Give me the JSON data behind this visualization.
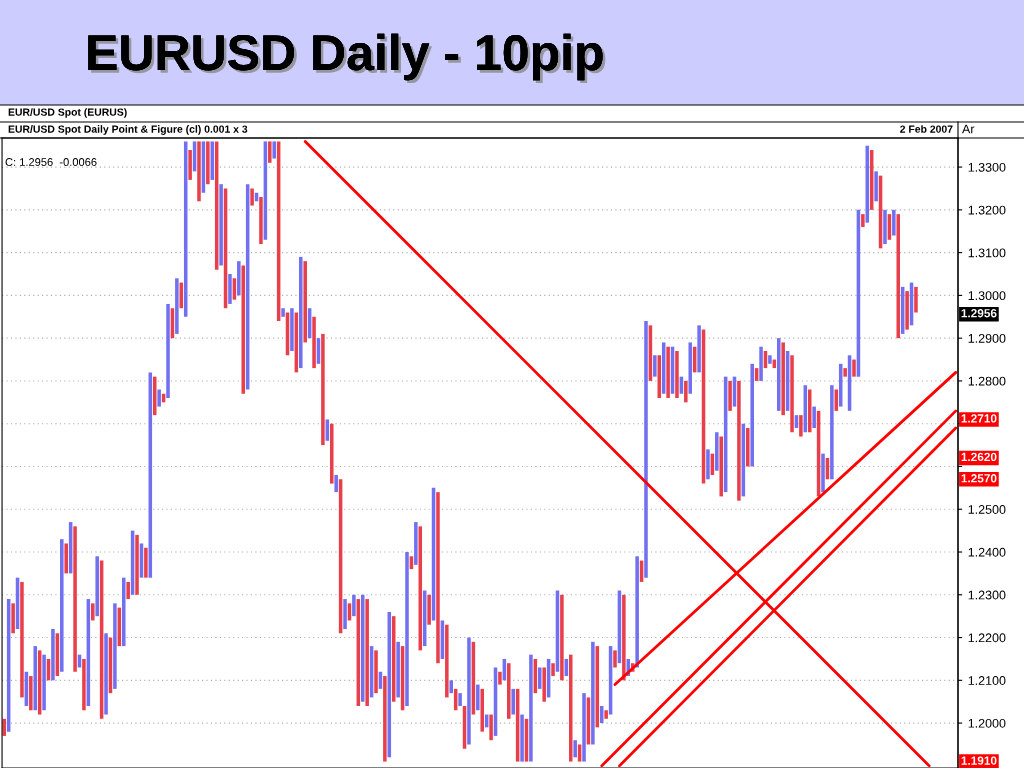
{
  "chart_data": {
    "type": "bar",
    "title": "EURUSD Daily - 10pip",
    "subtitle": "EUR/USD Spot Daily Point & Figure (cl) 0.001 x 3",
    "annotations": [
      "EUR/USD Spot (EURUS)",
      "2 Feb 2007",
      "Ar",
      "C: 1.2956  -0.0066",
      {
        "text": "1.2956",
        "y": 1.2956
      },
      {
        "text": "1.2710",
        "y": 1.271
      },
      {
        "text": "1.2620",
        "y": 1.262
      },
      {
        "text": "1.2570",
        "y": 1.257
      },
      {
        "text": "1.1910",
        "y": 1.191
      }
    ],
    "categories": [
      null,
      null,
      null,
      null,
      null,
      null,
      null,
      null,
      null,
      null,
      null,
      null,
      null,
      null,
      null,
      null,
      null,
      null,
      null,
      null,
      null,
      null,
      null,
      null,
      null,
      null,
      null,
      null,
      null,
      null,
      null,
      null,
      null,
      null,
      null,
      null,
      null,
      null,
      null,
      null,
      null,
      null,
      null,
      null,
      null,
      null,
      null,
      null,
      null,
      null,
      null,
      null,
      null,
      null,
      null,
      null,
      null,
      null,
      null,
      null,
      null,
      null,
      null,
      null,
      null,
      null,
      null,
      null,
      null,
      null,
      null,
      null,
      null,
      null,
      null,
      null,
      null,
      null,
      null,
      null,
      null,
      null,
      null,
      null,
      null,
      null,
      null,
      null,
      null,
      null,
      null,
      null,
      null,
      null,
      null,
      null,
      null,
      null,
      null,
      null,
      null,
      null,
      null,
      null,
      null,
      null,
      null,
      null,
      null,
      null,
      null,
      null,
      null,
      null,
      null,
      null,
      null,
      null,
      null,
      null,
      null,
      null,
      null,
      null,
      null,
      null,
      null,
      null,
      null,
      null,
      null,
      null,
      null,
      null,
      null,
      null,
      null,
      null,
      null,
      null,
      null,
      null,
      null,
      null,
      null,
      null,
      null,
      null,
      null,
      null,
      null,
      null,
      null,
      null,
      null,
      null,
      null,
      null,
      null,
      null,
      null,
      null,
      null,
      null,
      null,
      null,
      null,
      null,
      null,
      null,
      null,
      null,
      null,
      null,
      null,
      null,
      null,
      null,
      null,
      null,
      null,
      null,
      null,
      null,
      null,
      null,
      null,
      null,
      null,
      null,
      null,
      null,
      null,
      null,
      null,
      null,
      null,
      null,
      null,
      null,
      null,
      null,
      null,
      null,
      null,
      null,
      null,
      null,
      null,
      null,
      null,
      null,
      null,
      null,
      null,
      null
    ],
    "series": [
      {
        "base": [
          1.197,
          1.198,
          1.221,
          1.222,
          1.206,
          1.204,
          1.203,
          1.203,
          1.202,
          1.203,
          1.21,
          1.21,
          1.211,
          1.212,
          1.235,
          1.235,
          1.212,
          1.213,
          1.203,
          1.204,
          1.224,
          1.225,
          1.201,
          1.202,
          1.207,
          1.208,
          1.218,
          1.218,
          1.229,
          1.23,
          1.23,
          1.234,
          1.234,
          1.234,
          1.272,
          1.274,
          1.275,
          1.276,
          1.29,
          1.291,
          1.297,
          1.295,
          1.327,
          1.329,
          1.322,
          1.324,
          1.326,
          1.327,
          1.306,
          1.307,
          1.297,
          1.298,
          1.299,
          1.3,
          1.277,
          1.278,
          1.321,
          1.322,
          1.312,
          1.313,
          1.331,
          1.332,
          1.294,
          1.295,
          1.286,
          1.287,
          1.282,
          1.283,
          1.289,
          1.29,
          1.283,
          1.284,
          1.265,
          1.266,
          1.256,
          1.254,
          1.221,
          1.222,
          1.224,
          1.225,
          1.204,
          1.205,
          1.204,
          1.206,
          1.207,
          1.208,
          1.191,
          1.192,
          1.205,
          1.206,
          1.203,
          1.204,
          1.236,
          1.237,
          1.217,
          1.218,
          1.223,
          1.224,
          1.214,
          1.215,
          1.206,
          1.207,
          1.203,
          1.204,
          1.194,
          1.195,
          1.202,
          1.203,
          1.198,
          1.199,
          1.196,
          1.197,
          1.209,
          1.21,
          1.201,
          1.202,
          1.191,
          1.191,
          1.191,
          1.191,
          1.207,
          1.208,
          1.205,
          1.206,
          1.211,
          1.212,
          1.21,
          1.211,
          1.191,
          1.192,
          1.191,
          1.191,
          1.195,
          1.195,
          1.199,
          1.2,
          1.201,
          1.202,
          1.213,
          1.214,
          1.21,
          1.211,
          1.212,
          1.213,
          1.233,
          1.234,
          1.28,
          1.281,
          1.276,
          1.277,
          1.276,
          1.277,
          1.276,
          1.277,
          1.275,
          1.277,
          1.282,
          1.282,
          1.256,
          1.257,
          1.258,
          1.259,
          1.253,
          1.254,
          1.273,
          1.274,
          1.252,
          1.253,
          1.26,
          1.26,
          1.28,
          1.28,
          1.283,
          1.284,
          1.283,
          1.273,
          1.272,
          1.273,
          1.268,
          1.269,
          1.267,
          1.268,
          1.268,
          1.269,
          1.253,
          1.254,
          1.257,
          1.257,
          1.273,
          1.274,
          1.281,
          1.273,
          1.281,
          1.281,
          1.316,
          1.317,
          1.32,
          1.322,
          1.311,
          1.312,
          1.313,
          1.314,
          1.29,
          1.291,
          1.292,
          1.293,
          1.296,
          null,
          null,
          null,
          null,
          null,
          null,
          null,
          null,
          null
        ],
        "values": [
          0.004,
          0.031,
          0.007,
          0.012,
          0.027,
          0.008,
          0.008,
          0.015,
          0.015,
          0.013,
          0.005,
          0.012,
          0.01,
          0.031,
          0.007,
          0.012,
          0.034,
          0.003,
          0.012,
          0.025,
          0.004,
          0.014,
          0.037,
          0.019,
          0.013,
          0.02,
          0.009,
          0.016,
          0.004,
          0.015,
          0.014,
          0.008,
          0.007,
          0.048,
          0.009,
          0.004,
          0.002,
          0.022,
          0.007,
          0.013,
          0.006,
          0.041,
          0.007,
          0.007,
          0.014,
          0.012,
          0.01,
          0.009,
          0.03,
          0.019,
          0.028,
          0.007,
          0.005,
          0.008,
          0.03,
          0.048,
          0.004,
          0.002,
          0.011,
          0.023,
          0.005,
          0.004,
          0.042,
          0.002,
          0.01,
          0.01,
          0.014,
          0.026,
          0.019,
          0.007,
          0.012,
          0.006,
          0.026,
          0.005,
          0.014,
          0.004,
          0.036,
          0.007,
          0.004,
          0.005,
          0.025,
          0.025,
          0.025,
          0.012,
          0.01,
          0.004,
          0.02,
          0.034,
          0.02,
          0.013,
          0.015,
          0.036,
          0.003,
          0.01,
          0.029,
          0.013,
          0.007,
          0.031,
          0.04,
          0.009,
          0.017,
          0.003,
          0.005,
          0.003,
          0.01,
          0.025,
          0.017,
          0.006,
          0.01,
          0.003,
          0.006,
          0.016,
          0.003,
          0.005,
          0.013,
          0.006,
          0.017,
          0.011,
          0.01,
          0.025,
          0.008,
          0.005,
          0.008,
          0.009,
          0.003,
          0.019,
          0.02,
          0.004,
          0.025,
          0.004,
          0.004,
          0.016,
          0.011,
          0.024,
          0.019,
          0.004,
          0.002,
          0.016,
          0.004,
          0.017,
          0.02,
          0.004,
          0.002,
          0.026,
          0.005,
          0.06,
          0.013,
          0.005,
          0.01,
          0.012,
          0.012,
          0.011,
          0.011,
          0.004,
          0.005,
          0.012,
          0.006,
          0.011,
          0.036,
          0.007,
          0.005,
          0.009,
          0.014,
          0.027,
          0.007,
          0.007,
          0.028,
          0.017,
          0.009,
          0.024,
          0.003,
          0.008,
          0.004,
          0.002,
          0.002,
          0.017,
          0.017,
          0.014,
          0.018,
          0.003,
          0.005,
          0.011,
          0.01,
          0.005,
          0.02,
          0.009,
          0.005,
          0.022,
          0.005,
          0.01,
          0.002,
          0.013,
          0.004,
          0.039,
          0.003,
          0.018,
          0.014,
          0.007,
          0.017,
          0.008,
          0.006,
          0.006,
          0.029,
          0.011,
          0.009,
          0.01,
          0.006,
          null,
          null,
          null,
          null,
          null,
          null,
          null,
          null,
          null
        ],
        "colors": [
          "#e8404a",
          "#7070f0",
          "#e8404a",
          "#7070f0",
          "#e8404a",
          "#7070f0",
          "#e8404a",
          "#7070f0",
          "#e8404a",
          "#7070f0",
          "#e8404a",
          "#7070f0",
          "#e8404a",
          "#7070f0",
          "#e8404a",
          "#7070f0",
          "#e8404a",
          "#7070f0",
          "#e8404a",
          "#7070f0",
          "#e8404a",
          "#7070f0",
          "#e8404a",
          "#7070f0",
          "#e8404a",
          "#7070f0",
          "#e8404a",
          "#7070f0",
          "#e8404a",
          "#7070f0",
          "#e8404a",
          "#7070f0",
          "#e8404a",
          "#7070f0",
          "#e8404a",
          "#7070f0",
          "#e8404a",
          "#7070f0",
          "#e8404a",
          "#7070f0",
          "#e8404a",
          "#7070f0",
          "#e8404a",
          "#7070f0",
          "#e8404a",
          "#7070f0",
          "#e8404a",
          "#7070f0",
          "#e8404a",
          "#7070f0",
          "#e8404a",
          "#7070f0",
          "#e8404a",
          "#7070f0",
          "#e8404a",
          "#7070f0",
          "#e8404a",
          "#7070f0",
          "#e8404a",
          "#7070f0",
          "#e8404a",
          "#7070f0",
          "#e8404a",
          "#7070f0",
          "#e8404a",
          "#7070f0",
          "#e8404a",
          "#7070f0",
          "#e8404a",
          "#7070f0",
          "#e8404a",
          "#7070f0",
          "#e8404a",
          "#7070f0",
          "#e8404a",
          "#7070f0",
          "#e8404a",
          "#7070f0",
          "#e8404a",
          "#7070f0",
          "#e8404a",
          "#7070f0",
          "#e8404a",
          "#7070f0",
          "#e8404a",
          "#7070f0",
          "#e8404a",
          "#7070f0",
          "#e8404a",
          "#7070f0",
          "#e8404a",
          "#7070f0",
          "#e8404a",
          "#7070f0",
          "#e8404a",
          "#7070f0",
          "#e8404a",
          "#7070f0",
          "#e8404a",
          "#7070f0",
          "#e8404a",
          "#7070f0",
          "#e8404a",
          "#7070f0",
          "#e8404a",
          "#7070f0",
          "#e8404a",
          "#7070f0",
          "#e8404a",
          "#7070f0",
          "#e8404a",
          "#7070f0",
          "#e8404a",
          "#7070f0",
          "#e8404a",
          "#7070f0",
          "#e8404a",
          "#7070f0",
          "#e8404a",
          "#7070f0",
          "#e8404a",
          "#7070f0",
          "#e8404a",
          "#7070f0",
          "#e8404a",
          "#7070f0",
          "#e8404a",
          "#7070f0",
          "#e8404a",
          "#7070f0",
          "#e8404a",
          "#7070f0",
          "#e8404a",
          "#7070f0",
          "#e8404a",
          "#7070f0",
          "#e8404a",
          "#7070f0",
          "#e8404a",
          "#7070f0",
          "#e8404a",
          "#7070f0",
          "#e8404a",
          "#7070f0",
          "#e8404a",
          "#7070f0",
          "#e8404a",
          "#7070f0",
          "#e8404a",
          "#7070f0",
          "#e8404a",
          "#7070f0",
          "#e8404a",
          "#7070f0",
          "#e8404a",
          "#7070f0",
          "#e8404a",
          "#7070f0",
          "#e8404a",
          "#7070f0",
          "#e8404a",
          "#7070f0",
          "#e8404a",
          "#7070f0",
          "#e8404a",
          "#7070f0",
          "#e8404a",
          "#7070f0",
          "#e8404a",
          "#7070f0",
          "#e8404a",
          "#7070f0",
          "#e8404a",
          "#7070f0",
          "#e8404a",
          "#7070f0",
          "#e8404a",
          "#7070f0",
          "#e8404a",
          "#7070f0",
          "#e8404a",
          "#7070f0",
          "#e8404a",
          "#7070f0",
          "#e8404a",
          "#7070f0",
          "#e8404a",
          "#7070f0",
          "#e8404a",
          "#7070f0",
          "#e8404a",
          "#7070f0",
          "#e8404a",
          "#7070f0",
          "#e8404a",
          "#7070f0",
          "#e8404a",
          "#7070f0",
          "#e8404a",
          "#7070f0",
          "#e8404a",
          "#7070f0",
          "#e8404a",
          "#7070f0",
          "#e8404a",
          "#7070f0",
          "#e8404a",
          null,
          null,
          null,
          null,
          null,
          null,
          null,
          null,
          null
        ]
      },
      {
        "type": "line",
        "color": "#ff0000",
        "values": [
          null,
          null,
          null,
          null,
          null,
          null,
          null,
          null,
          null,
          null,
          null,
          null,
          null,
          null,
          null,
          null,
          null,
          null,
          null,
          null,
          null,
          null,
          null,
          null,
          null,
          null,
          null,
          null,
          null,
          null,
          null,
          null,
          null,
          null,
          null,
          null,
          null,
          null,
          null,
          null,
          null,
          null,
          null,
          null,
          null,
          null,
          null,
          null,
          null,
          null,
          null,
          null,
          null,
          null,
          null,
          null,
          null,
          null,
          null,
          null,
          null,
          null,
          null,
          null,
          null,
          null,
          null,
          null,
          1.336,
          null,
          null,
          null,
          null,
          null,
          null,
          null,
          null,
          null,
          null,
          null,
          null,
          null,
          null,
          null,
          null,
          null,
          null,
          null,
          null,
          null,
          null,
          null,
          null,
          null,
          null,
          null,
          null,
          null,
          null,
          null,
          null,
          null,
          null,
          null,
          null,
          null,
          null,
          null,
          null,
          null,
          null,
          null,
          null,
          null,
          null,
          null,
          null,
          null,
          null,
          null,
          null,
          null,
          null,
          null,
          null,
          null,
          null,
          null,
          null,
          null,
          null,
          null,
          null,
          null,
          null,
          null,
          null,
          null,
          null,
          null,
          null,
          null,
          null,
          null,
          null,
          null,
          null,
          null,
          null,
          null,
          null,
          null,
          null,
          null,
          null,
          null,
          null,
          null,
          null,
          null,
          null,
          null,
          null,
          null,
          null,
          null,
          null,
          null,
          null,
          null,
          null,
          null,
          null,
          null,
          null,
          null,
          null,
          null,
          null,
          null,
          null,
          null,
          null,
          null,
          null,
          null,
          null,
          null,
          null,
          null,
          null,
          null,
          null,
          null,
          null,
          null,
          null,
          null,
          null,
          null,
          null,
          null,
          null,
          null,
          null,
          null,
          null,
          null,
          null,
          1.19,
          null,
          null,
          null,
          null,
          null,
          null
        ]
      },
      {
        "type": "line",
        "color": "#ff0000",
        "values": [
          null,
          null,
          null,
          null,
          null,
          null,
          null,
          null,
          null,
          null,
          null,
          null,
          null,
          null,
          null,
          null,
          null,
          null,
          null,
          null,
          null,
          null,
          null,
          null,
          null,
          null,
          null,
          null,
          null,
          null,
          null,
          null,
          null,
          null,
          null,
          null,
          null,
          null,
          null,
          null,
          null,
          null,
          null,
          null,
          null,
          null,
          null,
          null,
          null,
          null,
          null,
          null,
          null,
          null,
          null,
          null,
          null,
          null,
          null,
          null,
          null,
          null,
          null,
          null,
          null,
          null,
          null,
          null,
          null,
          null,
          null,
          null,
          null,
          null,
          null,
          null,
          null,
          null,
          null,
          null,
          null,
          null,
          null,
          null,
          null,
          null,
          null,
          null,
          null,
          null,
          null,
          null,
          null,
          null,
          null,
          null,
          null,
          null,
          null,
          null,
          null,
          null,
          null,
          null,
          null,
          null,
          null,
          null,
          null,
          null,
          null,
          null,
          null,
          null,
          null,
          null,
          null,
          null,
          null,
          null,
          null,
          null,
          null,
          null,
          null,
          null,
          null,
          null,
          null,
          null,
          null,
          null,
          null,
          null,
          null,
          null,
          null,
          null,
          1.209,
          null,
          null,
          null,
          null,
          null,
          null,
          null,
          null,
          null,
          null,
          null,
          null,
          null,
          null,
          null,
          null,
          null,
          null,
          null,
          null,
          null,
          null,
          null,
          null,
          null,
          null,
          null,
          null,
          null,
          null,
          null,
          null,
          null,
          null,
          null,
          null,
          null,
          null,
          null,
          null,
          null,
          null,
          null,
          null,
          null,
          null,
          null,
          null,
          null,
          null,
          null,
          null,
          null,
          null,
          null,
          null,
          null,
          null,
          null,
          null,
          null,
          null,
          null,
          null,
          null,
          null,
          null,
          null,
          null,
          null,
          null,
          null,
          null,
          null,
          null,
          null,
          1.282
        ]
      },
      {
        "type": "line",
        "color": "#ff0000",
        "values": [
          null,
          null,
          null,
          null,
          null,
          null,
          null,
          null,
          null,
          null,
          null,
          null,
          null,
          null,
          null,
          null,
          null,
          null,
          null,
          null,
          null,
          null,
          null,
          null,
          null,
          null,
          null,
          null,
          null,
          null,
          null,
          null,
          null,
          null,
          null,
          null,
          null,
          null,
          null,
          null,
          null,
          null,
          null,
          null,
          null,
          null,
          null,
          null,
          null,
          null,
          null,
          null,
          null,
          null,
          null,
          null,
          null,
          null,
          null,
          null,
          null,
          null,
          null,
          null,
          null,
          null,
          null,
          null,
          null,
          null,
          null,
          null,
          null,
          null,
          null,
          null,
          null,
          null,
          null,
          null,
          null,
          null,
          null,
          null,
          null,
          null,
          null,
          null,
          null,
          null,
          null,
          null,
          null,
          null,
          null,
          null,
          null,
          null,
          null,
          null,
          null,
          null,
          null,
          null,
          null,
          null,
          null,
          null,
          null,
          null,
          null,
          null,
          null,
          null,
          null,
          null,
          null,
          null,
          null,
          null,
          null,
          null,
          null,
          null,
          null,
          null,
          null,
          null,
          null,
          null,
          null,
          null,
          null,
          null,
          null,
          1.19,
          null,
          null,
          null,
          null,
          null,
          null,
          null,
          null,
          null,
          null,
          null,
          null,
          null,
          null,
          null,
          null,
          null,
          null,
          null,
          null,
          null,
          null,
          null,
          null,
          null,
          null,
          null,
          null,
          null,
          null,
          null,
          null,
          null,
          null,
          null,
          null,
          null,
          null,
          null,
          null,
          null,
          null,
          null,
          null,
          null,
          null,
          null,
          null,
          null,
          null,
          null,
          null,
          null,
          null,
          null,
          null,
          null,
          null,
          null,
          null,
          null,
          null,
          null,
          null,
          null,
          null,
          null,
          null,
          null,
          null,
          null,
          null,
          null,
          null,
          null,
          null,
          null,
          null,
          null,
          1.273
        ]
      },
      {
        "type": "line",
        "color": "#ff0000",
        "values": [
          null,
          null,
          null,
          null,
          null,
          null,
          null,
          null,
          null,
          null,
          null,
          null,
          null,
          null,
          null,
          null,
          null,
          null,
          null,
          null,
          null,
          null,
          null,
          null,
          null,
          null,
          null,
          null,
          null,
          null,
          null,
          null,
          null,
          null,
          null,
          null,
          null,
          null,
          null,
          null,
          null,
          null,
          null,
          null,
          null,
          null,
          null,
          null,
          null,
          null,
          null,
          null,
          null,
          null,
          null,
          null,
          null,
          null,
          null,
          null,
          null,
          null,
          null,
          null,
          null,
          null,
          null,
          null,
          null,
          null,
          null,
          null,
          null,
          null,
          null,
          null,
          null,
          null,
          null,
          null,
          null,
          null,
          null,
          null,
          null,
          null,
          null,
          null,
          null,
          null,
          null,
          null,
          null,
          null,
          null,
          null,
          null,
          null,
          null,
          null,
          null,
          null,
          null,
          null,
          null,
          null,
          null,
          null,
          null,
          null,
          null,
          null,
          null,
          null,
          null,
          null,
          null,
          null,
          null,
          null,
          null,
          null,
          null,
          null,
          null,
          null,
          null,
          null,
          null,
          null,
          null,
          null,
          null,
          null,
          null,
          null,
          null,
          null,
          null,
          1.19,
          null,
          null,
          null,
          null,
          null,
          null,
          null,
          null,
          null,
          null,
          null,
          null,
          null,
          null,
          null,
          null,
          null,
          null,
          null,
          null,
          null,
          null,
          null,
          null,
          null,
          null,
          null,
          null,
          null,
          null,
          null,
          null,
          null,
          null,
          null,
          null,
          null,
          null,
          null,
          null,
          null,
          null,
          null,
          null,
          null,
          null,
          null,
          null,
          null,
          null,
          null,
          null,
          null,
          null,
          null,
          null,
          null,
          null,
          null,
          null,
          null,
          null,
          null,
          null,
          null,
          null,
          null,
          null,
          null,
          null,
          null,
          null,
          null,
          null,
          null,
          1.269
        ]
      }
    ],
    "ylim": [
      1.1895,
      1.3368
    ],
    "yticks": [
      {
        "value": 1.2,
        "label": "1.2000"
      },
      {
        "value": 1.21,
        "label": "1.2100"
      },
      {
        "value": 1.22,
        "label": "1.2200"
      },
      {
        "value": 1.23,
        "label": "1.2300"
      },
      {
        "value": 1.24,
        "label": "1.2400"
      },
      {
        "value": 1.25,
        "label": "1.2500"
      },
      {
        "value": 1.26,
        "label": null
      },
      {
        "value": 1.27,
        "label": null
      },
      {
        "value": 1.28,
        "label": "1.2800"
      },
      {
        "value": 1.29,
        "label": "1.2900"
      },
      {
        "value": 1.3,
        "label": "1.3000"
      },
      {
        "value": 1.31,
        "label": "1.3100"
      },
      {
        "value": 1.32,
        "label": "1.3200"
      },
      {
        "value": 1.33,
        "label": "1.3300"
      }
    ],
    "grid": "y",
    "tick_labels": "y"
  }
}
